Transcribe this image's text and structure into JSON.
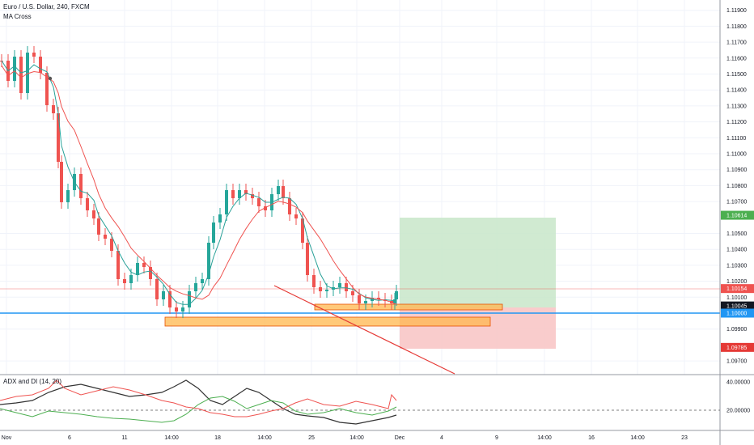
{
  "legend": {
    "symbol_line": "Euro / U.S. Dollar, 240, FXCM",
    "indicator_1": "MA Cross",
    "indicator_2": "ADX and DI (14, 20)"
  },
  "colors": {
    "candle_up": "#26a69a",
    "candle_down": "#ef5350",
    "ma_fast": "#2aa198",
    "ma_slow": "#ef5350",
    "level_line": "#2196f3",
    "profit_zone": "#c8e6c9",
    "loss_zone": "#f8c6c6",
    "support_box": "#ffb74d",
    "adx_line": "#333333",
    "di_plus": "#4caf50",
    "di_minus": "#ef5350"
  },
  "price_axis": {
    "ticks": [
      "1.11900",
      "1.11800",
      "1.11700",
      "1.11600",
      "1.11500",
      "1.11400",
      "1.11300",
      "1.11200",
      "1.11100",
      "1.11000",
      "1.10900",
      "1.10800",
      "1.10700",
      "1.10500",
      "1.10400",
      "1.10300",
      "1.10200",
      "1.10100",
      "1.09900",
      "1.09700"
    ],
    "tick_values": [
      1.119,
      1.118,
      1.117,
      1.116,
      1.115,
      1.114,
      1.113,
      1.112,
      1.111,
      1.11,
      1.109,
      1.108,
      1.107,
      1.105,
      1.104,
      1.103,
      1.102,
      1.101,
      1.099,
      1.097
    ],
    "tags": [
      {
        "text": "1.10614",
        "value": 1.10614,
        "bg": "#4caf50",
        "fg": "#ffffff"
      },
      {
        "text": "1.10154",
        "value": 1.10154,
        "bg": "#ef5350",
        "fg": "#ffffff"
      },
      {
        "text": "1.10045",
        "value": 1.10045,
        "bg": "#131722",
        "fg": "#ffffff"
      },
      {
        "text": "1.10000",
        "value": 1.1,
        "bg": "#2196f3",
        "fg": "#ffffff"
      },
      {
        "text": "1.09785",
        "value": 1.09785,
        "bg": "#e53935",
        "fg": "#ffffff"
      }
    ]
  },
  "indicator_axis": {
    "ticks": [
      "40.00000",
      "20.00000"
    ],
    "tick_values": [
      40,
      20
    ]
  },
  "time_axis": {
    "labels": [
      "Nov",
      "6",
      "11",
      "14:00",
      "18",
      "14:00",
      "25",
      "14:00",
      "Dec",
      "4",
      "9",
      "14:00",
      "16",
      "14:00",
      "23"
    ]
  },
  "levels": {
    "horizontal_level": 1.1,
    "current_price": 1.10154,
    "entry": 1.10045,
    "target": 1.10614,
    "stop": 1.09785
  }
}
